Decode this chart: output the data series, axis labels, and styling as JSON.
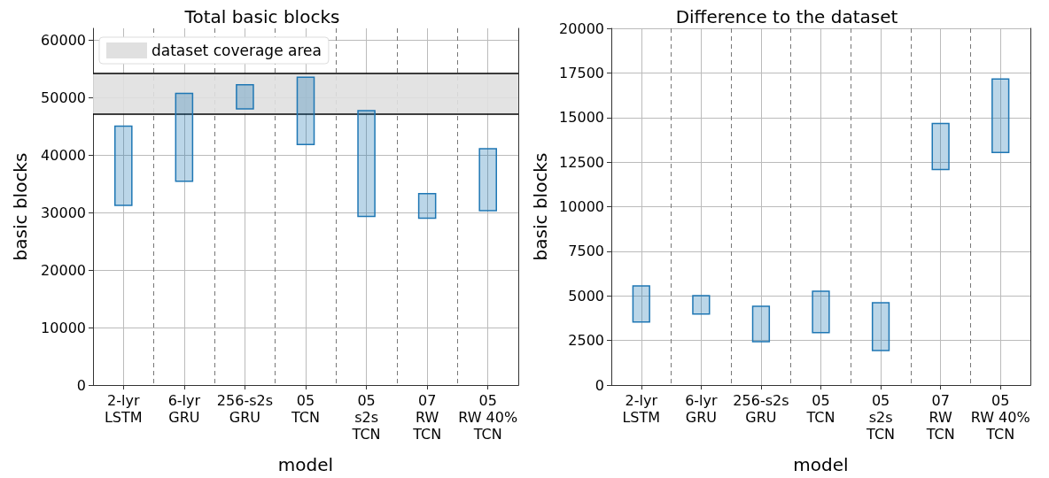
{
  "chart_data": [
    {
      "type": "bar",
      "title": "Total basic blocks",
      "xlabel": "model",
      "ylabel": "basic blocks",
      "categories": [
        "2-lyr\nLSTM",
        "6-lyr\nGRU",
        "256-s2s\nGRU",
        "05\nTCN",
        "05\ns2s\nTCN",
        "07\nRW\nTCN",
        "05\nRW 40%\nTCN"
      ],
      "base": [
        31100,
        35300,
        47900,
        41700,
        29200,
        28900,
        30200
      ],
      "values": [
        14000,
        15500,
        4400,
        11900,
        18600,
        4500,
        11000
      ],
      "color": "#1f77b4",
      "ylim": [
        0,
        62000
      ],
      "yticks": [
        0,
        10000,
        20000,
        30000,
        40000,
        50000,
        60000
      ],
      "grid": true,
      "legend": "top left",
      "bands": [
        {
          "axis": "y",
          "from": 47100,
          "to": 54200,
          "label": "dataset coverage area",
          "color": "#e0e0e0"
        }
      ],
      "ref_lines": [
        {
          "axis": "y",
          "value": 47100,
          "color": "#000000"
        },
        {
          "axis": "y",
          "value": 54200,
          "color": "#000000"
        }
      ]
    },
    {
      "type": "bar",
      "title": "Difference to the dataset",
      "xlabel": "model",
      "ylabel": "basic blocks",
      "categories": [
        "2-lyr\nLSTM",
        "6-lyr\nGRU",
        "256-s2s\nGRU",
        "05\nTCN",
        "05\ns2s\nTCN",
        "07\nRW\nTCN",
        "05\nRW 40%\nTCN"
      ],
      "base": [
        3500,
        3950,
        2400,
        2900,
        1900,
        12050,
        13000
      ],
      "values": [
        2100,
        1100,
        2050,
        2400,
        2750,
        2650,
        4200
      ],
      "color": "#1f77b4",
      "ylim": [
        0,
        20000
      ],
      "yticks": [
        0,
        2500,
        5000,
        7500,
        10000,
        12500,
        15000,
        17500,
        20000
      ],
      "grid": true
    }
  ]
}
